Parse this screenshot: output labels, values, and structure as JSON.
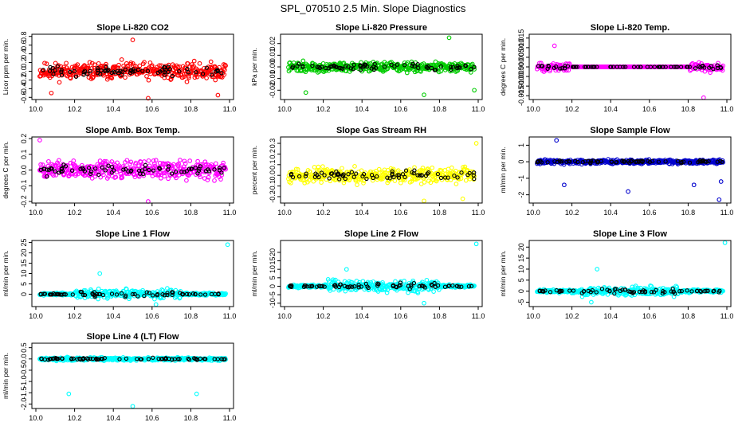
{
  "title": "SPL_070510  2.5 Min. Slope Diagnostics",
  "chart_data": [
    {
      "type": "scatter",
      "title": "Slope Li-820 CO2",
      "ylabel": "Licor ppm per min.",
      "color": "#ff0000",
      "xlim": [
        10.0,
        11.0
      ],
      "xticks": [
        "10.0",
        "10.2",
        "10.4",
        "10.6",
        "10.8",
        "11.0"
      ],
      "ylim": [
        -0.65,
        0.85
      ],
      "yticks": [
        "-0.6",
        "-0.4",
        "-0.2",
        "0.0",
        "0.2",
        "0.4",
        "0.6",
        "0.8"
      ],
      "spread": 0.28,
      "outliers": [
        [
          10.5,
          0.72
        ],
        [
          10.58,
          -0.62
        ],
        [
          10.94,
          -0.55
        ],
        [
          10.08,
          -0.5
        ]
      ],
      "seed": 11
    },
    {
      "type": "scatter",
      "title": "Slope Li-820 Pressure",
      "ylabel": "kPa per min.",
      "color": "#00cc00",
      "xlim": [
        10.0,
        11.0
      ],
      "xticks": [
        "10.0",
        "10.2",
        "10.4",
        "10.6",
        "10.8",
        "11.0"
      ],
      "ylim": [
        -0.028,
        0.028
      ],
      "yticks": [
        "-0.02",
        "-0.01",
        "0.00",
        "0.01",
        "0.02"
      ],
      "spread": 0.006,
      "outliers": [
        [
          10.85,
          0.025
        ],
        [
          10.11,
          -0.022
        ],
        [
          10.98,
          -0.02
        ],
        [
          10.72,
          -0.024
        ]
      ],
      "seed": 22
    },
    {
      "type": "scatter",
      "title": "Slope Li-820 Temp.",
      "ylabel": "degrees C per min.",
      "color": "#ff00ff",
      "xlim": [
        10.0,
        11.0
      ],
      "xticks": [
        "10.0",
        "10.2",
        "10.4",
        "10.6",
        "10.8",
        "11.0"
      ],
      "ylim": [
        -0.017,
        0.017
      ],
      "yticks": [
        "-0.015",
        "-0.010",
        "-0.005",
        "0.000",
        "0.005",
        "0.010",
        "0.015"
      ],
      "spread": 0.003,
      "quiet": [
        10.19,
        10.81
      ],
      "outliers": [
        [
          10.88,
          -0.016
        ],
        [
          10.11,
          0.011
        ]
      ],
      "seed": 33
    },
    {
      "type": "scatter",
      "title": "Slope Amb. Box Temp.",
      "ylabel": "degrees C per min.",
      "color": "#ff00ff",
      "xlim": [
        10.0,
        11.0
      ],
      "xticks": [
        "10.0",
        "10.2",
        "10.4",
        "10.6",
        "10.8",
        "11.0"
      ],
      "ylim": [
        -0.21,
        0.21
      ],
      "yticks": [
        "-0.2",
        "-0.1",
        "0.0",
        "0.1",
        "0.2"
      ],
      "spread": 0.08,
      "outliers": [
        [
          10.58,
          -0.2
        ],
        [
          10.02,
          0.19
        ]
      ],
      "seed": 44
    },
    {
      "type": "scatter",
      "title": "Slope Gas Stream RH",
      "ylabel": "percent per min.",
      "color": "#ffff00",
      "xlim": [
        10.0,
        11.0
      ],
      "xticks": [
        "10.0",
        "10.2",
        "10.4",
        "10.6",
        "10.8",
        "11.0"
      ],
      "ylim": [
        -0.26,
        0.36
      ],
      "yticks": [
        "-0.2",
        "-0.1",
        "0.0",
        "0.1",
        "0.2",
        "0.3"
      ],
      "spread": 0.1,
      "outliers": [
        [
          10.99,
          0.3
        ],
        [
          10.72,
          -0.24
        ],
        [
          10.92,
          -0.22
        ]
      ],
      "seed": 55
    },
    {
      "type": "scatter",
      "title": "Slope Sample Flow",
      "ylabel": "ml/min per min.",
      "color": "#0000cc",
      "xlim": [
        10.0,
        11.0
      ],
      "xticks": [
        "10.0",
        "10.2",
        "10.4",
        "10.6",
        "10.8",
        "11.0"
      ],
      "ylim": [
        -2.5,
        1.5
      ],
      "yticks": [
        "-2",
        "-1",
        "0",
        "1"
      ],
      "spread": 0.18,
      "outliers": [
        [
          10.12,
          1.3
        ],
        [
          10.16,
          -1.4
        ],
        [
          10.49,
          -1.8
        ],
        [
          10.83,
          -1.4
        ],
        [
          10.97,
          -1.2
        ],
        [
          10.96,
          -2.3
        ]
      ],
      "seed": 66
    },
    {
      "type": "scatter",
      "title": "Slope Line 1 Flow",
      "ylabel": "ml/min per min.",
      "color": "#00ffff",
      "xlim": [
        10.0,
        11.0
      ],
      "xticks": [
        "10.0",
        "10.2",
        "10.4",
        "10.6",
        "10.8",
        "11.0"
      ],
      "ylim": [
        -6,
        26
      ],
      "yticks": [
        "0",
        "5",
        "10",
        "15",
        "20",
        "25"
      ],
      "spread": 0.9,
      "bump": [
        10.2,
        10.75,
        3.5
      ],
      "outliers": [
        [
          10.99,
          24
        ],
        [
          10.33,
          10
        ],
        [
          10.62,
          -5
        ]
      ],
      "seed": 77
    },
    {
      "type": "scatter",
      "title": "Slope Line 2 Flow",
      "ylabel": "ml/min per min.",
      "color": "#00ffff",
      "xlim": [
        10.0,
        11.0
      ],
      "xticks": [
        "10.0",
        "10.2",
        "10.4",
        "10.6",
        "10.8",
        "11.0"
      ],
      "ylim": [
        -12,
        27
      ],
      "yticks": [
        "-10",
        "-5",
        "0",
        "5",
        "10",
        "15",
        "20"
      ],
      "spread": 1.2,
      "bump": [
        10.22,
        10.8,
        4
      ],
      "outliers": [
        [
          10.99,
          25
        ],
        [
          10.72,
          -10
        ],
        [
          10.32,
          10
        ]
      ],
      "seed": 88
    },
    {
      "type": "scatter",
      "title": "Slope Line 3 Flow",
      "ylabel": "ml/min per min.",
      "color": "#00ffff",
      "xlim": [
        10.0,
        11.0
      ],
      "xticks": [
        "10.0",
        "10.2",
        "10.4",
        "10.6",
        "10.8",
        "11.0"
      ],
      "ylim": [
        -7,
        23
      ],
      "yticks": [
        "-5",
        "0",
        "5",
        "10",
        "15",
        "20"
      ],
      "spread": 1.0,
      "bump": [
        10.25,
        10.75,
        3
      ],
      "outliers": [
        [
          10.99,
          22
        ],
        [
          10.33,
          10
        ],
        [
          10.3,
          -5
        ]
      ],
      "seed": 99
    },
    {
      "type": "scatter",
      "title": "Slope Line 4 (LT) Flow",
      "ylabel": "ml/min per min.",
      "color": "#00ffff",
      "xlim": [
        10.0,
        11.0
      ],
      "xticks": [
        "10.0",
        "10.2",
        "10.4",
        "10.6",
        "10.8",
        "11.0"
      ],
      "ylim": [
        -2.2,
        0.7
      ],
      "yticks": [
        "-2.0",
        "-1.5",
        "-1.0",
        "-0.5",
        "0.0",
        "0.5"
      ],
      "spread": 0.1,
      "outliers": [
        [
          10.17,
          -1.55
        ],
        [
          10.5,
          -2.1
        ],
        [
          10.83,
          -1.55
        ]
      ],
      "seed": 111
    }
  ]
}
